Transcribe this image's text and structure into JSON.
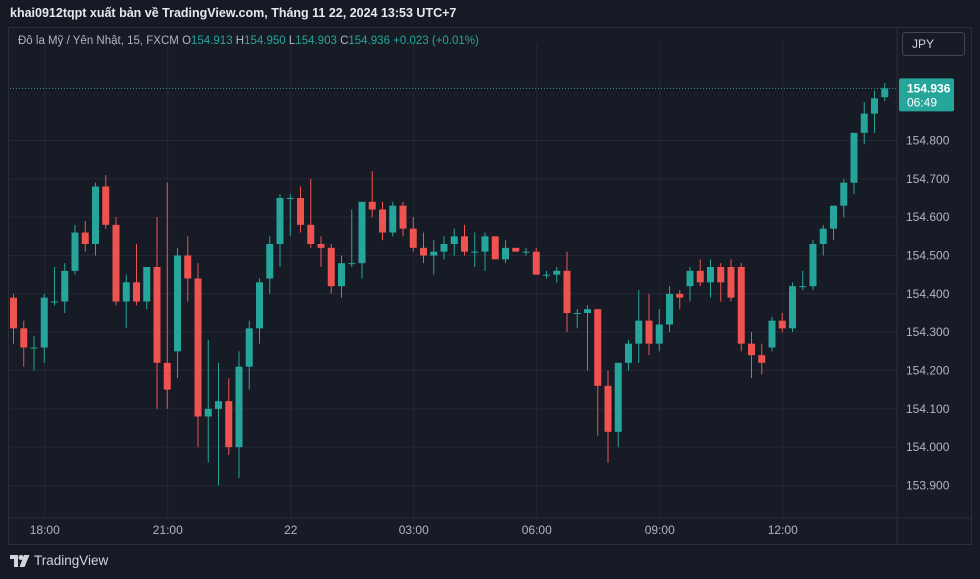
{
  "publisher_line": "khai0912tqpt xuất bản về TradingView.com, Tháng 11 22, 2024 13:53 UTC+7",
  "legend": {
    "symbol": "Đô la Mỹ / Yên Nhật, 15, FXCM",
    "o_label": "O",
    "o_value": "154.913",
    "h_label": "H",
    "h_value": "154.950",
    "l_label": "L",
    "l_value": "154.903",
    "c_label": "C",
    "c_value": "154.936",
    "change": "+0.023 (+0.01%)"
  },
  "currency_button": "JPY",
  "last_price": {
    "price": "154.936",
    "countdown": "06:49"
  },
  "brand": "TradingView",
  "colors": {
    "up": "#26a69a",
    "down": "#ef5350",
    "background": "#171b26",
    "grid": "#242836",
    "axis_text": "#b2b5be"
  },
  "chart_data": {
    "type": "candlestick",
    "interval": "15",
    "y_ticks": [
      "154.800",
      "154.700",
      "154.600",
      "154.500",
      "154.400",
      "154.300",
      "154.200",
      "154.100",
      "154.000",
      "153.900"
    ],
    "x_ticks": [
      "18:00",
      "21:00",
      "22",
      "03:00",
      "06:00",
      "09:00",
      "12:00"
    ],
    "ylim": [
      153.81,
      155.01
    ],
    "last_close": 154.936,
    "candles": [
      {
        "o": 154.39,
        "h": 154.4,
        "l": 154.27,
        "c": 154.31
      },
      {
        "o": 154.31,
        "h": 154.33,
        "l": 154.21,
        "c": 154.26
      },
      {
        "o": 154.26,
        "h": 154.29,
        "l": 154.2,
        "c": 154.26
      },
      {
        "o": 154.26,
        "h": 154.4,
        "l": 154.22,
        "c": 154.39
      },
      {
        "o": 154.38,
        "h": 154.47,
        "l": 154.37,
        "c": 154.38
      },
      {
        "o": 154.38,
        "h": 154.48,
        "l": 154.35,
        "c": 154.46
      },
      {
        "o": 154.46,
        "h": 154.58,
        "l": 154.45,
        "c": 154.56
      },
      {
        "o": 154.56,
        "h": 154.59,
        "l": 154.51,
        "c": 154.53
      },
      {
        "o": 154.53,
        "h": 154.69,
        "l": 154.5,
        "c": 154.68
      },
      {
        "o": 154.68,
        "h": 154.71,
        "l": 154.57,
        "c": 154.58
      },
      {
        "o": 154.58,
        "h": 154.6,
        "l": 154.37,
        "c": 154.38
      },
      {
        "o": 154.38,
        "h": 154.45,
        "l": 154.31,
        "c": 154.43
      },
      {
        "o": 154.43,
        "h": 154.53,
        "l": 154.37,
        "c": 154.38
      },
      {
        "o": 154.38,
        "h": 154.47,
        "l": 154.36,
        "c": 154.47
      },
      {
        "o": 154.47,
        "h": 154.6,
        "l": 154.1,
        "c": 154.22
      },
      {
        "o": 154.22,
        "h": 154.69,
        "l": 154.1,
        "c": 154.15
      },
      {
        "o": 154.25,
        "h": 154.52,
        "l": 154.18,
        "c": 154.5
      },
      {
        "o": 154.5,
        "h": 154.55,
        "l": 154.38,
        "c": 154.44
      },
      {
        "o": 154.44,
        "h": 154.48,
        "l": 154.0,
        "c": 154.08
      },
      {
        "o": 154.08,
        "h": 154.28,
        "l": 153.96,
        "c": 154.1
      },
      {
        "o": 154.1,
        "h": 154.22,
        "l": 153.9,
        "c": 154.12
      },
      {
        "o": 154.12,
        "h": 154.18,
        "l": 153.98,
        "c": 154.0
      },
      {
        "o": 154.0,
        "h": 154.25,
        "l": 153.92,
        "c": 154.21
      },
      {
        "o": 154.21,
        "h": 154.33,
        "l": 154.15,
        "c": 154.31
      },
      {
        "o": 154.31,
        "h": 154.44,
        "l": 154.27,
        "c": 154.43
      },
      {
        "o": 154.44,
        "h": 154.55,
        "l": 154.4,
        "c": 154.53
      },
      {
        "o": 154.53,
        "h": 154.66,
        "l": 154.47,
        "c": 154.65
      },
      {
        "o": 154.65,
        "h": 154.66,
        "l": 154.55,
        "c": 154.65
      },
      {
        "o": 154.65,
        "h": 154.68,
        "l": 154.56,
        "c": 154.58
      },
      {
        "o": 154.58,
        "h": 154.7,
        "l": 154.52,
        "c": 154.53
      },
      {
        "o": 154.53,
        "h": 154.55,
        "l": 154.47,
        "c": 154.52
      },
      {
        "o": 154.52,
        "h": 154.53,
        "l": 154.4,
        "c": 154.42
      },
      {
        "o": 154.42,
        "h": 154.5,
        "l": 154.39,
        "c": 154.48
      },
      {
        "o": 154.48,
        "h": 154.62,
        "l": 154.47,
        "c": 154.48
      },
      {
        "o": 154.48,
        "h": 154.64,
        "l": 154.44,
        "c": 154.64
      },
      {
        "o": 154.64,
        "h": 154.72,
        "l": 154.6,
        "c": 154.62
      },
      {
        "o": 154.62,
        "h": 154.64,
        "l": 154.54,
        "c": 154.56
      },
      {
        "o": 154.56,
        "h": 154.64,
        "l": 154.55,
        "c": 154.63
      },
      {
        "o": 154.63,
        "h": 154.64,
        "l": 154.55,
        "c": 154.57
      },
      {
        "o": 154.57,
        "h": 154.6,
        "l": 154.51,
        "c": 154.52
      },
      {
        "o": 154.52,
        "h": 154.56,
        "l": 154.48,
        "c": 154.5
      },
      {
        "o": 154.5,
        "h": 154.54,
        "l": 154.45,
        "c": 154.51
      },
      {
        "o": 154.51,
        "h": 154.55,
        "l": 154.49,
        "c": 154.53
      },
      {
        "o": 154.53,
        "h": 154.57,
        "l": 154.5,
        "c": 154.55
      },
      {
        "o": 154.55,
        "h": 154.58,
        "l": 154.5,
        "c": 154.51
      },
      {
        "o": 154.51,
        "h": 154.56,
        "l": 154.47,
        "c": 154.51
      },
      {
        "o": 154.51,
        "h": 154.56,
        "l": 154.46,
        "c": 154.55
      },
      {
        "o": 154.55,
        "h": 154.55,
        "l": 154.49,
        "c": 154.49
      },
      {
        "o": 154.49,
        "h": 154.54,
        "l": 154.48,
        "c": 154.52
      },
      {
        "o": 154.52,
        "h": 154.52,
        "l": 154.51,
        "c": 154.51
      },
      {
        "o": 154.51,
        "h": 154.52,
        "l": 154.5,
        "c": 154.51
      },
      {
        "o": 154.51,
        "h": 154.52,
        "l": 154.45,
        "c": 154.45
      },
      {
        "o": 154.45,
        "h": 154.46,
        "l": 154.44,
        "c": 154.45
      },
      {
        "o": 154.45,
        "h": 154.47,
        "l": 154.43,
        "c": 154.46
      },
      {
        "o": 154.46,
        "h": 154.51,
        "l": 154.3,
        "c": 154.35
      },
      {
        "o": 154.35,
        "h": 154.36,
        "l": 154.31,
        "c": 154.35
      },
      {
        "o": 154.35,
        "h": 154.37,
        "l": 154.2,
        "c": 154.36
      },
      {
        "o": 154.36,
        "h": 154.36,
        "l": 154.03,
        "c": 154.16
      },
      {
        "o": 154.16,
        "h": 154.2,
        "l": 153.96,
        "c": 154.04
      },
      {
        "o": 154.04,
        "h": 154.22,
        "l": 154.0,
        "c": 154.22
      },
      {
        "o": 154.22,
        "h": 154.28,
        "l": 154.2,
        "c": 154.27
      },
      {
        "o": 154.27,
        "h": 154.41,
        "l": 154.22,
        "c": 154.33
      },
      {
        "o": 154.33,
        "h": 154.4,
        "l": 154.24,
        "c": 154.27
      },
      {
        "o": 154.27,
        "h": 154.36,
        "l": 154.25,
        "c": 154.32
      },
      {
        "o": 154.32,
        "h": 154.42,
        "l": 154.3,
        "c": 154.4
      },
      {
        "o": 154.4,
        "h": 154.41,
        "l": 154.36,
        "c": 154.39
      },
      {
        "o": 154.42,
        "h": 154.47,
        "l": 154.38,
        "c": 154.46
      },
      {
        "o": 154.46,
        "h": 154.49,
        "l": 154.42,
        "c": 154.43
      },
      {
        "o": 154.43,
        "h": 154.49,
        "l": 154.39,
        "c": 154.47
      },
      {
        "o": 154.47,
        "h": 154.48,
        "l": 154.38,
        "c": 154.43
      },
      {
        "o": 154.47,
        "h": 154.49,
        "l": 154.38,
        "c": 154.39
      },
      {
        "o": 154.47,
        "h": 154.48,
        "l": 154.25,
        "c": 154.27
      },
      {
        "o": 154.27,
        "h": 154.3,
        "l": 154.18,
        "c": 154.24
      },
      {
        "o": 154.24,
        "h": 154.27,
        "l": 154.19,
        "c": 154.22
      },
      {
        "o": 154.26,
        "h": 154.34,
        "l": 154.25,
        "c": 154.33
      },
      {
        "o": 154.33,
        "h": 154.35,
        "l": 154.3,
        "c": 154.31
      },
      {
        "o": 154.31,
        "h": 154.43,
        "l": 154.3,
        "c": 154.42
      },
      {
        "o": 154.42,
        "h": 154.46,
        "l": 154.41,
        "c": 154.42
      },
      {
        "o": 154.42,
        "h": 154.54,
        "l": 154.41,
        "c": 154.53
      },
      {
        "o": 154.53,
        "h": 154.58,
        "l": 154.5,
        "c": 154.57
      },
      {
        "o": 154.57,
        "h": 154.63,
        "l": 154.54,
        "c": 154.63
      },
      {
        "o": 154.63,
        "h": 154.7,
        "l": 154.6,
        "c": 154.69
      },
      {
        "o": 154.69,
        "h": 154.82,
        "l": 154.66,
        "c": 154.82
      },
      {
        "o": 154.82,
        "h": 154.9,
        "l": 154.79,
        "c": 154.87
      },
      {
        "o": 154.87,
        "h": 154.93,
        "l": 154.82,
        "c": 154.91
      },
      {
        "o": 154.913,
        "h": 154.95,
        "l": 154.903,
        "c": 154.936
      }
    ]
  }
}
